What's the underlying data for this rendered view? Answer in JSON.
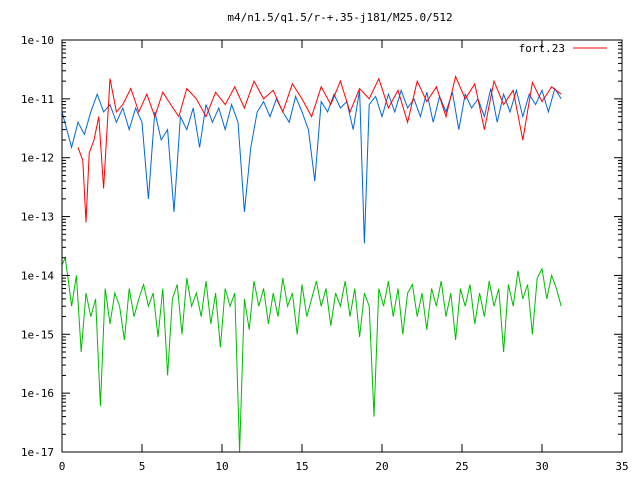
{
  "chart_data": {
    "type": "line",
    "title": "m4/n1.5/q1.5/r-+.35-j181/M25.0/512",
    "xlabel": "",
    "ylabel": "",
    "xlim": [
      0,
      35
    ],
    "ylim": [
      1e-17,
      1e-10
    ],
    "yscale": "log",
    "grid": false,
    "legend_position": "top-right",
    "x_ticks": [
      0,
      5,
      10,
      15,
      20,
      25,
      30,
      35
    ],
    "x_tick_labels": [
      "0",
      "5",
      "10",
      "15",
      "20",
      "25",
      "30",
      "35"
    ],
    "y_ticks": [
      1e-17,
      1e-16,
      1e-15,
      1e-14,
      1e-13,
      1e-12,
      1e-11,
      1e-10
    ],
    "y_tick_labels": [
      "1e-17",
      "1e-16",
      "1e-15",
      "1e-14",
      "1e-13",
      "1e-12",
      "1e-11",
      "1e-10"
    ],
    "series": [
      {
        "name": "fort.23",
        "color": "#ff0000",
        "x": [
          1.0,
          1.3,
          1.5,
          1.7,
          2.0,
          2.3,
          2.6,
          3.0,
          3.4,
          3.8,
          4.3,
          4.8,
          5.3,
          5.8,
          6.3,
          6.8,
          7.3,
          7.8,
          8.4,
          9.0,
          9.6,
          10.2,
          10.8,
          11.4,
          12.0,
          12.6,
          13.2,
          13.8,
          14.4,
          15.0,
          15.6,
          16.2,
          16.8,
          17.4,
          18.0,
          18.6,
          19.2,
          19.8,
          20.4,
          21.0,
          21.6,
          22.2,
          22.8,
          23.4,
          24.0,
          24.6,
          25.2,
          25.8,
          26.4,
          27.0,
          27.6,
          28.2,
          28.8,
          29.4,
          30.0,
          30.6,
          31.2
        ],
        "y": [
          1.5e-12,
          9e-13,
          8e-14,
          1.2e-12,
          2e-12,
          5e-12,
          3e-13,
          2.2e-11,
          6e-12,
          8e-12,
          1.5e-11,
          6e-12,
          1.2e-11,
          5e-12,
          1.3e-11,
          8e-12,
          5e-12,
          1.5e-11,
          1e-11,
          5e-12,
          1.3e-11,
          8e-12,
          1.6e-11,
          7e-12,
          2e-11,
          1e-11,
          1.4e-11,
          6e-12,
          1.8e-11,
          1e-11,
          5e-12,
          1.6e-11,
          8e-12,
          2e-11,
          6e-12,
          1.5e-11,
          1e-11,
          2.2e-11,
          7e-12,
          1.4e-11,
          4e-12,
          2e-11,
          9e-12,
          1.6e-11,
          5e-12,
          2.4e-11,
          1e-11,
          1.8e-11,
          3e-12,
          2e-11,
          8e-12,
          1.4e-11,
          2e-12,
          1.9e-11,
          9e-12,
          1.6e-11,
          1.2e-11
        ]
      },
      {
        "color": "#0066dd",
        "x": [
          0,
          0.3,
          0.6,
          1.0,
          1.4,
          1.8,
          2.2,
          2.6,
          3.0,
          3.4,
          3.8,
          4.2,
          4.6,
          5.0,
          5.4,
          5.8,
          6.2,
          6.6,
          7.0,
          7.4,
          7.8,
          8.2,
          8.6,
          9.0,
          9.4,
          9.8,
          10.2,
          10.6,
          11.0,
          11.4,
          11.8,
          12.2,
          12.6,
          13.0,
          13.4,
          13.8,
          14.2,
          14.6,
          15.0,
          15.4,
          15.8,
          16.2,
          16.6,
          17.0,
          17.4,
          17.8,
          18.2,
          18.6,
          18.9,
          19.2,
          19.6,
          20.0,
          20.4,
          20.8,
          21.2,
          21.6,
          22.0,
          22.4,
          22.8,
          23.2,
          23.6,
          24.0,
          24.4,
          24.8,
          25.2,
          25.6,
          26.0,
          26.4,
          26.8,
          27.2,
          27.6,
          28.0,
          28.4,
          28.8,
          29.2,
          29.6,
          30.0,
          30.4,
          30.8,
          31.2
        ],
        "y": [
          6e-12,
          3e-12,
          1.5e-12,
          4e-12,
          2.5e-12,
          6e-12,
          1.2e-11,
          6e-12,
          8e-12,
          4e-12,
          7e-12,
          3e-12,
          7e-12,
          4e-12,
          2e-13,
          6e-12,
          2e-12,
          3e-12,
          1.2e-13,
          5e-12,
          3e-12,
          7e-12,
          1.5e-12,
          8e-12,
          4e-12,
          7e-12,
          3e-12,
          8e-12,
          4e-12,
          1.2e-13,
          1.5e-12,
          6e-12,
          9e-12,
          5e-12,
          1e-11,
          6e-12,
          4e-12,
          1.1e-11,
          6e-12,
          3e-12,
          4e-13,
          9e-12,
          6e-12,
          1.2e-11,
          7e-12,
          9e-12,
          3e-12,
          1.4e-11,
          3.5e-14,
          8e-12,
          1.1e-11,
          5e-12,
          1.2e-11,
          6e-12,
          1.4e-11,
          7e-12,
          1e-11,
          5e-12,
          1.3e-11,
          4e-12,
          1.1e-11,
          6e-12,
          1.3e-11,
          3e-12,
          1.2e-11,
          7e-12,
          1e-11,
          5e-12,
          1.5e-11,
          4e-12,
          1.2e-11,
          6e-12,
          1.4e-11,
          5e-12,
          1.2e-11,
          8e-12,
          1.4e-11,
          6e-12,
          1.5e-11,
          1e-11
        ]
      },
      {
        "color": "#00bb00",
        "x": [
          0,
          0.2,
          0.4,
          0.6,
          0.9,
          1.2,
          1.5,
          1.8,
          2.1,
          2.4,
          2.7,
          3.0,
          3.3,
          3.6,
          3.9,
          4.2,
          4.5,
          4.8,
          5.1,
          5.4,
          5.7,
          6.0,
          6.3,
          6.6,
          6.9,
          7.2,
          7.5,
          7.8,
          8.1,
          8.4,
          8.7,
          9.0,
          9.3,
          9.6,
          9.9,
          10.2,
          10.5,
          10.8,
          11.1,
          11.4,
          11.7,
          12.0,
          12.3,
          12.6,
          12.9,
          13.2,
          13.5,
          13.8,
          14.1,
          14.4,
          14.7,
          15.0,
          15.3,
          15.6,
          15.9,
          16.2,
          16.5,
          16.8,
          17.1,
          17.4,
          17.7,
          18.0,
          18.3,
          18.6,
          18.9,
          19.2,
          19.5,
          19.8,
          20.1,
          20.4,
          20.7,
          21.0,
          21.3,
          21.6,
          21.9,
          22.2,
          22.5,
          22.8,
          23.1,
          23.4,
          23.7,
          24.0,
          24.3,
          24.6,
          24.9,
          25.2,
          25.5,
          25.8,
          26.1,
          26.4,
          26.7,
          27.0,
          27.3,
          27.6,
          27.9,
          28.2,
          28.5,
          28.8,
          29.1,
          29.4,
          29.7,
          30.0,
          30.3,
          30.6,
          30.9,
          31.2
        ],
        "y": [
          1.5e-14,
          2e-14,
          8e-15,
          3e-15,
          1e-14,
          5e-16,
          5e-15,
          2e-15,
          4e-15,
          6e-17,
          6e-15,
          1.5e-15,
          5e-15,
          3e-15,
          8e-16,
          6e-15,
          2e-15,
          4e-15,
          7e-15,
          3e-15,
          5e-15,
          9e-16,
          6e-15,
          2e-16,
          4e-15,
          7e-15,
          1e-15,
          9e-15,
          3e-15,
          5e-15,
          2e-15,
          8e-15,
          1.5e-15,
          5e-15,
          6e-16,
          6e-15,
          3e-15,
          5e-15,
          1e-17,
          4e-15,
          1.2e-15,
          8e-15,
          3e-15,
          6e-15,
          1.5e-15,
          5e-15,
          2e-15,
          9e-15,
          3e-15,
          5e-15,
          1e-15,
          7e-15,
          2e-15,
          4e-15,
          8e-15,
          3e-15,
          6e-15,
          1.4e-15,
          5e-15,
          3e-15,
          8e-15,
          2e-15,
          6e-15,
          9e-16,
          5e-15,
          3e-15,
          4e-17,
          6e-15,
          3e-15,
          8e-15,
          2e-15,
          6e-15,
          1e-15,
          5e-15,
          7e-15,
          2e-15,
          5e-15,
          1.2e-15,
          6e-15,
          3e-15,
          8e-15,
          2e-15,
          5e-15,
          8e-16,
          6e-15,
          3e-15,
          7e-15,
          1.5e-15,
          5e-15,
          2e-15,
          8e-15,
          3e-15,
          6e-15,
          5e-16,
          7e-15,
          3e-15,
          1.2e-14,
          4e-15,
          7e-15,
          1e-15,
          9e-15,
          1.3e-14,
          4e-15,
          1e-14,
          6e-15,
          3e-15
        ]
      }
    ]
  }
}
